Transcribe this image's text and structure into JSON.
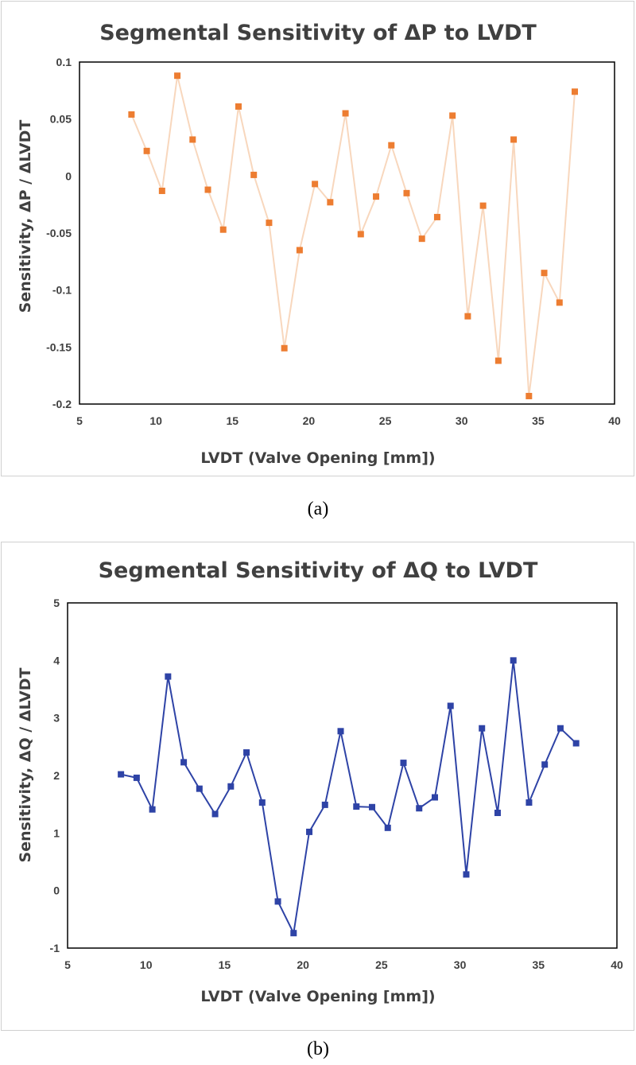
{
  "chart_data": [
    {
      "type": "line",
      "title": "Segmental Sensitivity of ΔP to LVDT",
      "xlabel": "LVDT (Valve Opening [mm])",
      "ylabel": "Sensitivity, ΔP / ΔLVDT",
      "xlim": [
        5,
        40
      ],
      "ylim": [
        -0.2,
        0.1
      ],
      "xticks": [
        "5",
        "10",
        "15",
        "20",
        "25",
        "30",
        "35",
        "40"
      ],
      "yticks": [
        "0.1",
        "0.05",
        "0",
        "-0.05",
        "-0.1",
        "-0.15",
        "-0.2"
      ],
      "grid": false,
      "legend": "none",
      "marker": "square",
      "line_color": "#f8d7bd",
      "marker_color": "#ed7d31",
      "series": [
        {
          "x": [
            8.4,
            9.4,
            10.4,
            11.4,
            12.4,
            13.4,
            14.4,
            15.4,
            16.4,
            17.4,
            18.4,
            19.4,
            20.4,
            21.4,
            22.4,
            23.4,
            24.4,
            25.4,
            26.4,
            27.4,
            28.4,
            29.4,
            30.4,
            31.4,
            32.4,
            33.4,
            34.4,
            35.4,
            36.4,
            37.4
          ],
          "values": [
            0.054,
            0.022,
            -0.013,
            0.088,
            0.032,
            -0.012,
            -0.047,
            0.061,
            0.001,
            -0.041,
            -0.151,
            -0.065,
            -0.007,
            -0.023,
            0.055,
            -0.051,
            -0.018,
            0.027,
            -0.015,
            -0.055,
            -0.036,
            0.053,
            -0.123,
            -0.026,
            -0.162,
            0.032,
            -0.193,
            -0.085,
            -0.111,
            0.074
          ]
        }
      ],
      "caption": "(a)"
    },
    {
      "type": "line",
      "title": "Segmental Sensitivity of ΔQ to LVDT",
      "xlabel": "LVDT (Valve Opening [mm])",
      "ylabel": "Sensitivity, ΔQ / ΔLVDT",
      "xlim": [
        5,
        40
      ],
      "ylim": [
        -1,
        5
      ],
      "xticks": [
        "5",
        "10",
        "15",
        "20",
        "25",
        "30",
        "35",
        "40"
      ],
      "yticks": [
        "5",
        "4",
        "3",
        "2",
        "1",
        "0",
        "-1"
      ],
      "grid": false,
      "legend": "none",
      "marker": "square",
      "line_color": "#2e43a6",
      "marker_color": "#2e43a6",
      "series": [
        {
          "x": [
            8.4,
            9.4,
            10.4,
            11.4,
            12.4,
            13.4,
            14.4,
            15.4,
            16.4,
            17.4,
            18.4,
            19.4,
            20.4,
            21.4,
            22.4,
            23.4,
            24.4,
            25.4,
            26.4,
            27.4,
            28.4,
            29.4,
            30.4,
            31.4,
            32.4,
            33.4,
            34.4,
            35.4,
            36.4,
            37.4
          ],
          "values": [
            2.02,
            1.96,
            1.41,
            3.72,
            2.23,
            1.77,
            1.33,
            1.81,
            2.4,
            1.53,
            -0.19,
            -0.74,
            1.02,
            1.49,
            2.77,
            1.46,
            1.45,
            1.09,
            2.22,
            1.43,
            1.62,
            3.21,
            0.28,
            2.82,
            1.35,
            4.0,
            1.53,
            2.19,
            2.82,
            2.56
          ]
        }
      ],
      "caption": "(b)"
    }
  ]
}
